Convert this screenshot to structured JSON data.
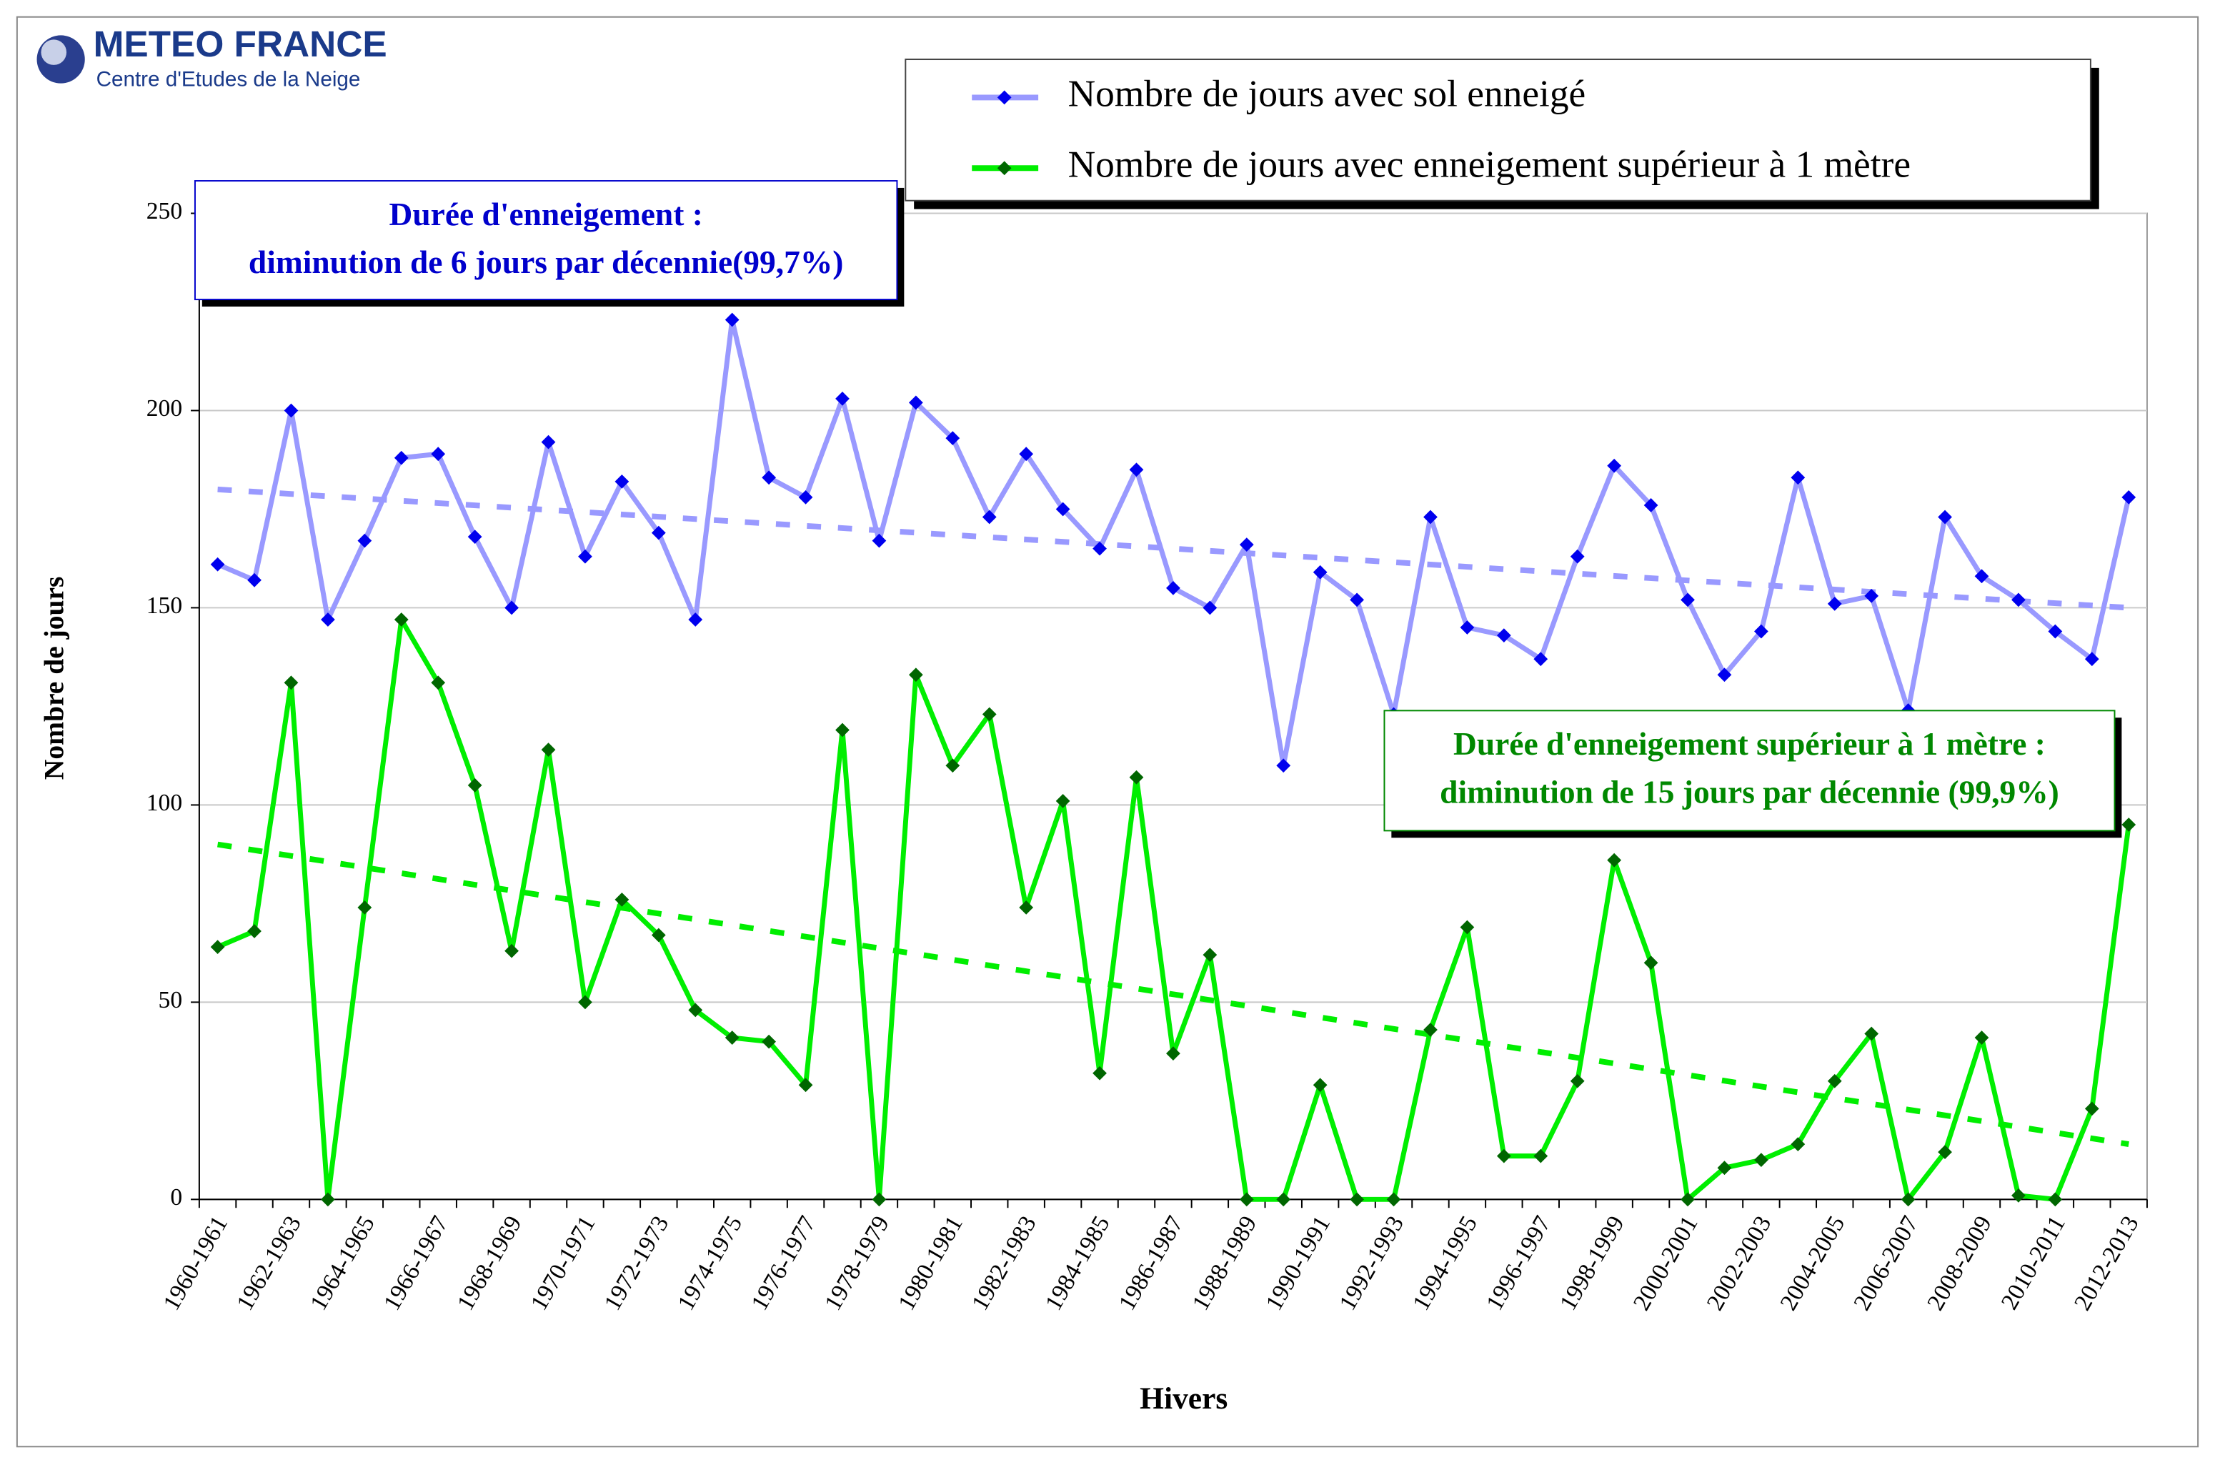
{
  "logo": {
    "title": "METEO FRANCE",
    "subtitle": "Centre d'Etudes de la Neige"
  },
  "chart_data": {
    "type": "line",
    "categories": [
      "1960-1961",
      null,
      "1962-1963",
      null,
      "1964-1965",
      null,
      "1966-1967",
      null,
      "1968-1969",
      null,
      "1970-1971",
      null,
      "1972-1973",
      null,
      "1974-1975",
      null,
      "1976-1977",
      null,
      "1978-1979",
      null,
      "1980-1981",
      null,
      "1982-1983",
      null,
      "1984-1985",
      null,
      "1986-1987",
      null,
      "1988-1989",
      null,
      "1990-1991",
      null,
      "1992-1993",
      null,
      "1994-1995",
      null,
      "1996-1997",
      null,
      "1998-1999",
      null,
      "2000-2001",
      null,
      "2002-2003",
      null,
      "2004-2005",
      null,
      "2006-2007",
      null,
      "2008-2009",
      null,
      "2010-2011",
      null,
      "2012-2013"
    ],
    "series": [
      {
        "name": "Nombre de jours avec sol enneigé",
        "color": "#9999ff",
        "marker_color": "#0000ee",
        "values": [
          161,
          157,
          200,
          147,
          167,
          188,
          189,
          168,
          150,
          192,
          163,
          182,
          169,
          147,
          223,
          183,
          178,
          203,
          167,
          202,
          193,
          173,
          189,
          175,
          165,
          185,
          155,
          150,
          166,
          110,
          159,
          152,
          123,
          173,
          145,
          143,
          137,
          163,
          186,
          176,
          152,
          133,
          144,
          183,
          151,
          153,
          124,
          173,
          158,
          152,
          144,
          137,
          178
        ],
        "trend": [
          180,
          150
        ]
      },
      {
        "name": "Nombre de jours avec enneigement supérieur à 1 mètre",
        "color": "#00ee00",
        "marker_color": "#006600",
        "values": [
          64,
          68,
          131,
          0,
          74,
          147,
          131,
          105,
          63,
          114,
          50,
          76,
          67,
          48,
          41,
          40,
          29,
          119,
          0,
          133,
          110,
          123,
          74,
          101,
          32,
          107,
          37,
          62,
          0,
          0,
          29,
          0,
          0,
          43,
          69,
          11,
          11,
          30,
          86,
          60,
          0,
          8,
          10,
          14,
          30,
          42,
          0,
          12,
          41,
          1,
          0,
          23,
          95
        ],
        "trend": [
          90,
          14
        ]
      }
    ],
    "ylim": [
      0,
      250
    ],
    "yticks": [
      0,
      50,
      100,
      150,
      200,
      250
    ],
    "grid": true,
    "ylabel": "Nombre de jours",
    "xlabel": "Hivers",
    "annotations": [
      {
        "lines": [
          "Durée d'enneigement :",
          "diminution de 6 jours par décennie(99,7%)"
        ],
        "color": "#0000cc"
      },
      {
        "lines": [
          "Durée d'enneigement supérieur à 1 mètre :",
          "diminution de 15 jours par décennie (99,9%)"
        ],
        "color": "#008800"
      }
    ]
  }
}
